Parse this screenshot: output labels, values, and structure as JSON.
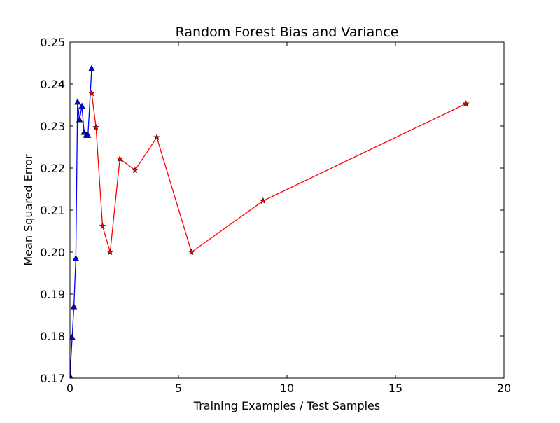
{
  "chart_data": {
    "type": "line",
    "title": "Random Forest Bias and Variance",
    "xlabel": "Training Examples / Test Samples",
    "ylabel": "Mean Squared Error",
    "xlim": [
      0,
      20
    ],
    "ylim": [
      0.17,
      0.25
    ],
    "x_ticks": [
      "0",
      "5",
      "10",
      "15",
      "20"
    ],
    "x_tick_values": [
      0,
      5,
      10,
      15,
      20
    ],
    "y_ticks": [
      "0.17",
      "0.18",
      "0.19",
      "0.20",
      "0.21",
      "0.22",
      "0.23",
      "0.24",
      "0.25"
    ],
    "y_tick_values": [
      0.17,
      0.18,
      0.19,
      0.2,
      0.21,
      0.22,
      0.23,
      0.24,
      0.25
    ],
    "grid": false,
    "legend": "none",
    "series": [
      {
        "color": "#0000ff",
        "marker": "triangle",
        "x": [
          0.0,
          0.1,
          0.18,
          0.27,
          0.35,
          0.44,
          0.55,
          0.65,
          0.75,
          0.83,
          1.0
        ],
        "y": [
          0.1705,
          0.1797,
          0.187,
          0.1985,
          0.2357,
          0.2315,
          0.2347,
          0.2285,
          0.2278,
          0.2278,
          0.2437
        ]
      },
      {
        "color": "#ff0000",
        "marker": "star",
        "x": [
          1.0,
          1.2,
          1.5,
          1.85,
          2.3,
          3.0,
          4.0,
          5.6,
          8.9,
          18.25
        ],
        "y": [
          0.2378,
          0.2297,
          0.2062,
          0.2,
          0.2222,
          0.2195,
          0.2273,
          0.2,
          0.2122,
          0.2353
        ]
      }
    ]
  }
}
